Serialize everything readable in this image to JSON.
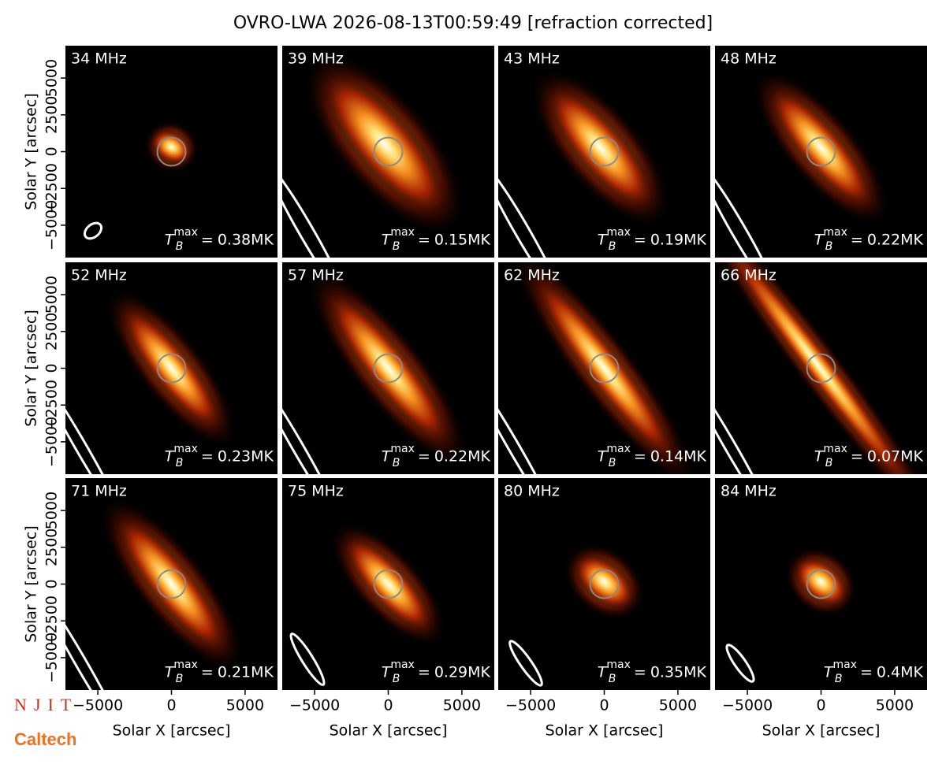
{
  "chart_data": {
    "type": "image-grid",
    "title": "OVRO-LWA 2026-08-13T00:59:49 [refraction corrected]",
    "xlabel": "Solar X [arcsec]",
    "ylabel": "Solar Y [arcsec]",
    "xlim": [
      -7200,
      7200
    ],
    "ylim": [
      -7200,
      7200
    ],
    "xticks": [
      {
        "value": -5000,
        "label": "−5000"
      },
      0,
      5000
    ],
    "yticks": [
      {
        "value": -5000,
        "label": "−5000"
      },
      {
        "value": -2500,
        "label": "−2500"
      },
      0,
      2500,
      5000
    ],
    "tb_symbol": "T",
    "tb_subscript": "B",
    "tb_superscript": "max",
    "equals": "=",
    "panels": [
      {
        "label": "34 MHz",
        "tb_max": 0.38,
        "tb_max_label": "0.38MK"
      },
      {
        "label": "39 MHz",
        "tb_max": 0.15,
        "tb_max_label": "0.15MK"
      },
      {
        "label": "43 MHz",
        "tb_max": 0.19,
        "tb_max_label": "0.19MK"
      },
      {
        "label": "48 MHz",
        "tb_max": 0.22,
        "tb_max_label": "0.22MK"
      },
      {
        "label": "52 MHz",
        "tb_max": 0.23,
        "tb_max_label": "0.23MK"
      },
      {
        "label": "57 MHz",
        "tb_max": 0.22,
        "tb_max_label": "0.22MK"
      },
      {
        "label": "62 MHz",
        "tb_max": 0.14,
        "tb_max_label": "0.14MK"
      },
      {
        "label": "66 MHz",
        "tb_max": 0.07,
        "tb_max_label": "0.07MK"
      },
      {
        "label": "71 MHz",
        "tb_max": 0.21,
        "tb_max_label": "0.21MK"
      },
      {
        "label": "75 MHz",
        "tb_max": 0.29,
        "tb_max_label": "0.29MK"
      },
      {
        "label": "80 MHz",
        "tb_max": 0.35,
        "tb_max_label": "0.35MK"
      },
      {
        "label": "84 MHz",
        "tb_max": 0.4,
        "tb_max_label": "0.4MK"
      }
    ],
    "logos": [
      "NJIT",
      "Caltech"
    ]
  }
}
